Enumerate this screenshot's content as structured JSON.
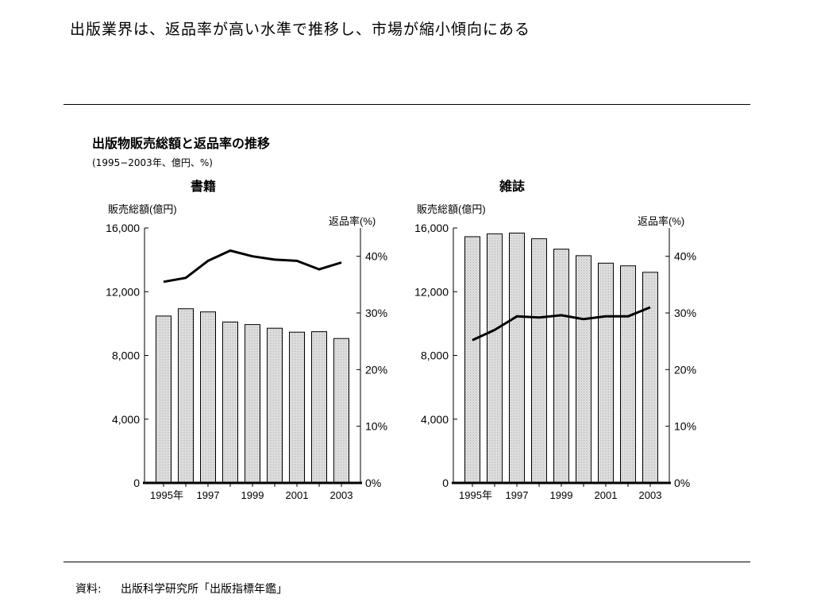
{
  "headline": "出版業界は、返品率が高い水準で推移し、市場が縮小傾向にある",
  "source": {
    "label": "資料:",
    "text": "出版科学研究所「出版指標年鑑」"
  },
  "chart_data": [
    {
      "type": "bar+line",
      "title": "出版物販売総額と返品率の推移",
      "subtitle": "(1995−2003年、億円、%)",
      "panel_title": "書籍",
      "y_left_label": "販売総額(億円)",
      "y_right_label": "返品率(%)",
      "x": [
        1995,
        1996,
        1997,
        1998,
        1999,
        2000,
        2001,
        2002,
        2003
      ],
      "x_tick_labels": [
        "1995年",
        "",
        "1997",
        "",
        "1999",
        "",
        "2001",
        "",
        "2003"
      ],
      "y_left_ticks": [
        "0",
        "4,000",
        "8,000",
        "12,000",
        "16,000"
      ],
      "y_left_lim": [
        0,
        16000
      ],
      "y_right_ticks": [
        "0%",
        "10%",
        "20%",
        "30%",
        "40%"
      ],
      "y_right_lim": [
        0,
        45
      ],
      "series": [
        {
          "kind": "bar",
          "axis": "left",
          "values": [
            10470,
            10930,
            10730,
            10100,
            9940,
            9710,
            9460,
            9490,
            9060
          ]
        },
        {
          "kind": "line",
          "axis": "right",
          "values": [
            35.5,
            36.2,
            39.2,
            41.0,
            40.0,
            39.4,
            39.2,
            37.7,
            38.9
          ]
        }
      ],
      "grid": false,
      "bar_color": "#e6e6e6",
      "line_color": "#000000"
    },
    {
      "type": "bar+line",
      "panel_title": "雑誌",
      "y_left_label": "販売総額(億円)",
      "y_right_label": "返品率(%)",
      "x": [
        1995,
        1996,
        1997,
        1998,
        1999,
        2000,
        2001,
        2002,
        2003
      ],
      "x_tick_labels": [
        "1995年",
        "",
        "1997",
        "",
        "1999",
        "",
        "2001",
        "",
        "2003"
      ],
      "y_left_ticks": [
        "0",
        "4,000",
        "8,000",
        "12,000",
        "16,000"
      ],
      "y_left_lim": [
        0,
        16000
      ],
      "y_right_ticks": [
        "0%",
        "10%",
        "20%",
        "30%",
        "40%"
      ],
      "y_right_lim": [
        0,
        45
      ],
      "series": [
        {
          "kind": "bar",
          "axis": "left",
          "values": [
            15450,
            15630,
            15680,
            15320,
            14670,
            14260,
            13790,
            13620,
            13220
          ]
        },
        {
          "kind": "line",
          "axis": "right",
          "values": [
            25.2,
            27.0,
            29.4,
            29.2,
            29.6,
            28.9,
            29.4,
            29.4,
            31.0
          ]
        }
      ],
      "grid": false,
      "bar_color": "#e6e6e6",
      "line_color": "#000000"
    }
  ]
}
